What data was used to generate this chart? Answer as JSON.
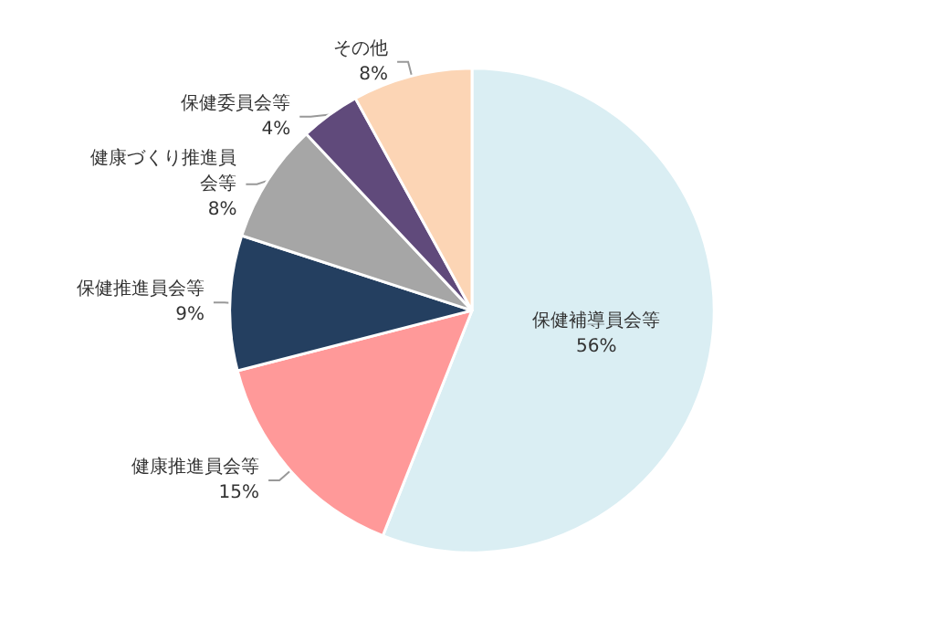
{
  "chart_data": {
    "type": "pie",
    "categories": [
      "保健補導員会等",
      "健康推進員会等",
      "保健推進員会等",
      "健康づくり推進員会等",
      "保健委員会等",
      "その他"
    ],
    "values": [
      56,
      15,
      9,
      8,
      4,
      8
    ],
    "value_labels": [
      "56%",
      "15%",
      "9%",
      "8%",
      "4%",
      "8%"
    ],
    "colors": [
      "#daeef3",
      "#ff9999",
      "#243f60",
      "#a6a6a6",
      "#604a7b",
      "#fcd5b5"
    ],
    "legend": false
  }
}
